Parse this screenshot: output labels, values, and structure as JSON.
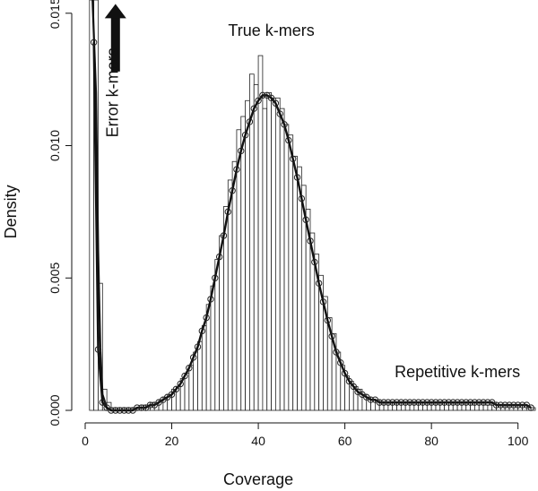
{
  "chart_data": {
    "type": "histogram",
    "xlabel": "Coverage",
    "ylabel": "Density",
    "xlim": [
      0,
      104
    ],
    "ylim": [
      0,
      0.0155
    ],
    "x_ticks": [
      0,
      20,
      40,
      60,
      80,
      100
    ],
    "x_tick_labels": [
      "0",
      "20",
      "40",
      "60",
      "80",
      "100"
    ],
    "y_ticks": [
      0.0,
      0.005,
      0.01,
      0.015
    ],
    "y_tick_labels": [
      "0.000",
      "0.005",
      "0.010",
      "0.015"
    ],
    "grid": false,
    "bin_width": 1,
    "histogram": {
      "bin_starts": [
        1,
        2,
        3,
        4,
        5,
        6,
        7,
        8,
        9,
        10,
        11,
        12,
        13,
        14,
        15,
        16,
        17,
        18,
        19,
        20,
        21,
        22,
        23,
        24,
        25,
        26,
        27,
        28,
        29,
        30,
        31,
        32,
        33,
        34,
        35,
        36,
        37,
        38,
        39,
        40,
        41,
        42,
        43,
        44,
        45,
        46,
        47,
        48,
        49,
        50,
        51,
        52,
        53,
        54,
        55,
        56,
        57,
        58,
        59,
        60,
        61,
        62,
        63,
        64,
        65,
        66,
        67,
        68,
        69,
        70,
        71,
        72,
        73,
        74,
        75,
        76,
        77,
        78,
        79,
        80,
        81,
        82,
        83,
        84,
        85,
        86,
        87,
        88,
        89,
        90,
        91,
        92,
        93,
        94,
        95,
        96,
        97,
        98,
        99,
        100,
        101,
        102,
        103
      ],
      "density": [
        0.0155,
        0.0155,
        0.0048,
        0.0008,
        0.0003,
        0.0001,
        0.0001,
        0.0001,
        0.0001,
        0.0001,
        0.0001,
        0.0001,
        0.0002,
        0.0002,
        0.0003,
        0.0003,
        0.0004,
        0.0005,
        0.0006,
        0.0008,
        0.0009,
        0.0012,
        0.0014,
        0.0017,
        0.0022,
        0.0026,
        0.0032,
        0.004,
        0.0047,
        0.0057,
        0.0066,
        0.0077,
        0.0087,
        0.0094,
        0.0106,
        0.0111,
        0.0117,
        0.0127,
        0.0123,
        0.0134,
        0.0114,
        0.012,
        0.0118,
        0.0118,
        0.0114,
        0.0108,
        0.0104,
        0.0096,
        0.0092,
        0.0085,
        0.0076,
        0.0067,
        0.0059,
        0.0051,
        0.0043,
        0.0035,
        0.0029,
        0.0022,
        0.0017,
        0.0013,
        0.0011,
        0.0009,
        0.0008,
        0.0006,
        0.0005,
        0.0004,
        0.0004,
        0.0003,
        0.0003,
        0.0003,
        0.0003,
        0.0003,
        0.0003,
        0.0003,
        0.0003,
        0.0003,
        0.0003,
        0.0003,
        0.0003,
        0.0003,
        0.0003,
        0.0003,
        0.0003,
        0.0003,
        0.0003,
        0.0003,
        0.0003,
        0.0003,
        0.0002,
        0.0003,
        0.0003,
        0.0002,
        0.0002,
        0.0003,
        0.0002,
        0.0002,
        0.0002,
        0.0002,
        0.0002,
        0.0002,
        0.0002,
        0.0001,
        0.0001
      ]
    },
    "series": [
      {
        "type": "line-with-circles",
        "x": [
          2,
          3,
          4,
          5,
          6,
          7,
          8,
          9,
          10,
          11,
          12,
          13,
          14,
          15,
          16,
          17,
          18,
          19,
          20,
          21,
          22,
          23,
          24,
          25,
          26,
          27,
          28,
          29,
          30,
          31,
          32,
          33,
          34,
          35,
          36,
          37,
          38,
          39,
          40,
          41,
          42,
          43,
          44,
          45,
          46,
          47,
          48,
          49,
          50,
          51,
          52,
          53,
          54,
          55,
          56,
          57,
          58,
          59,
          60,
          61,
          62,
          63,
          64,
          65,
          66,
          67,
          68,
          69,
          70,
          71,
          72,
          73,
          74,
          75,
          76,
          77,
          78,
          79,
          80,
          81,
          82,
          83,
          84,
          85,
          86,
          87,
          88,
          89,
          90,
          91,
          92,
          93,
          94,
          95,
          96,
          97,
          98,
          99,
          100,
          101,
          102,
          103
        ],
        "y": [
          0.0139,
          0.0023,
          0.0003,
          0.0001,
          0.0,
          0.0,
          0.0,
          0.0,
          0.0,
          0.0,
          0.0001,
          0.0001,
          0.0001,
          0.0002,
          0.0002,
          0.0003,
          0.0004,
          0.0005,
          0.0006,
          0.0008,
          0.001,
          0.0013,
          0.0016,
          0.002,
          0.0024,
          0.003,
          0.0035,
          0.0042,
          0.005,
          0.0058,
          0.0066,
          0.0075,
          0.0083,
          0.0091,
          0.0098,
          0.0104,
          0.0109,
          0.0114,
          0.0117,
          0.0119,
          0.0119,
          0.0118,
          0.0116,
          0.0112,
          0.0108,
          0.0102,
          0.0095,
          0.0088,
          0.008,
          0.0072,
          0.0064,
          0.0056,
          0.0048,
          0.0041,
          0.0034,
          0.0028,
          0.0022,
          0.0018,
          0.0014,
          0.0011,
          0.0009,
          0.0007,
          0.0006,
          0.0005,
          0.0004,
          0.0004,
          0.0003,
          0.0003,
          0.0003,
          0.0003,
          0.0003,
          0.0003,
          0.0003,
          0.0003,
          0.0003,
          0.0003,
          0.0003,
          0.0003,
          0.0003,
          0.0003,
          0.0003,
          0.0003,
          0.0003,
          0.0003,
          0.0003,
          0.0003,
          0.0003,
          0.0003,
          0.0003,
          0.0003,
          0.0003,
          0.0003,
          0.0003,
          0.0002,
          0.0002,
          0.0002,
          0.0002,
          0.0002,
          0.0002,
          0.0002,
          0.0002,
          0.0001
        ]
      }
    ],
    "steep_line": {
      "x": [
        1.7,
        2.5,
        3,
        3.5,
        4,
        5,
        6
      ],
      "y": [
        0.0155,
        0.012,
        0.006,
        0.0023,
        0.0006,
        0.0001,
        0.0
      ]
    },
    "annotations": [
      {
        "id": "true",
        "text": "True k-mers",
        "x": 43,
        "y": 0.01415,
        "rotate": 0
      },
      {
        "id": "error",
        "text": "Error k-mers",
        "x": 7.6,
        "y": 0.012,
        "rotate": -90
      },
      {
        "id": "repetitive",
        "text": "Repetitive k-mers",
        "x": 86,
        "y": 0.00125,
        "rotate": 0
      }
    ],
    "arrow": {
      "x": 7,
      "y_from": 0.0128,
      "y_to": 0.01535
    }
  }
}
